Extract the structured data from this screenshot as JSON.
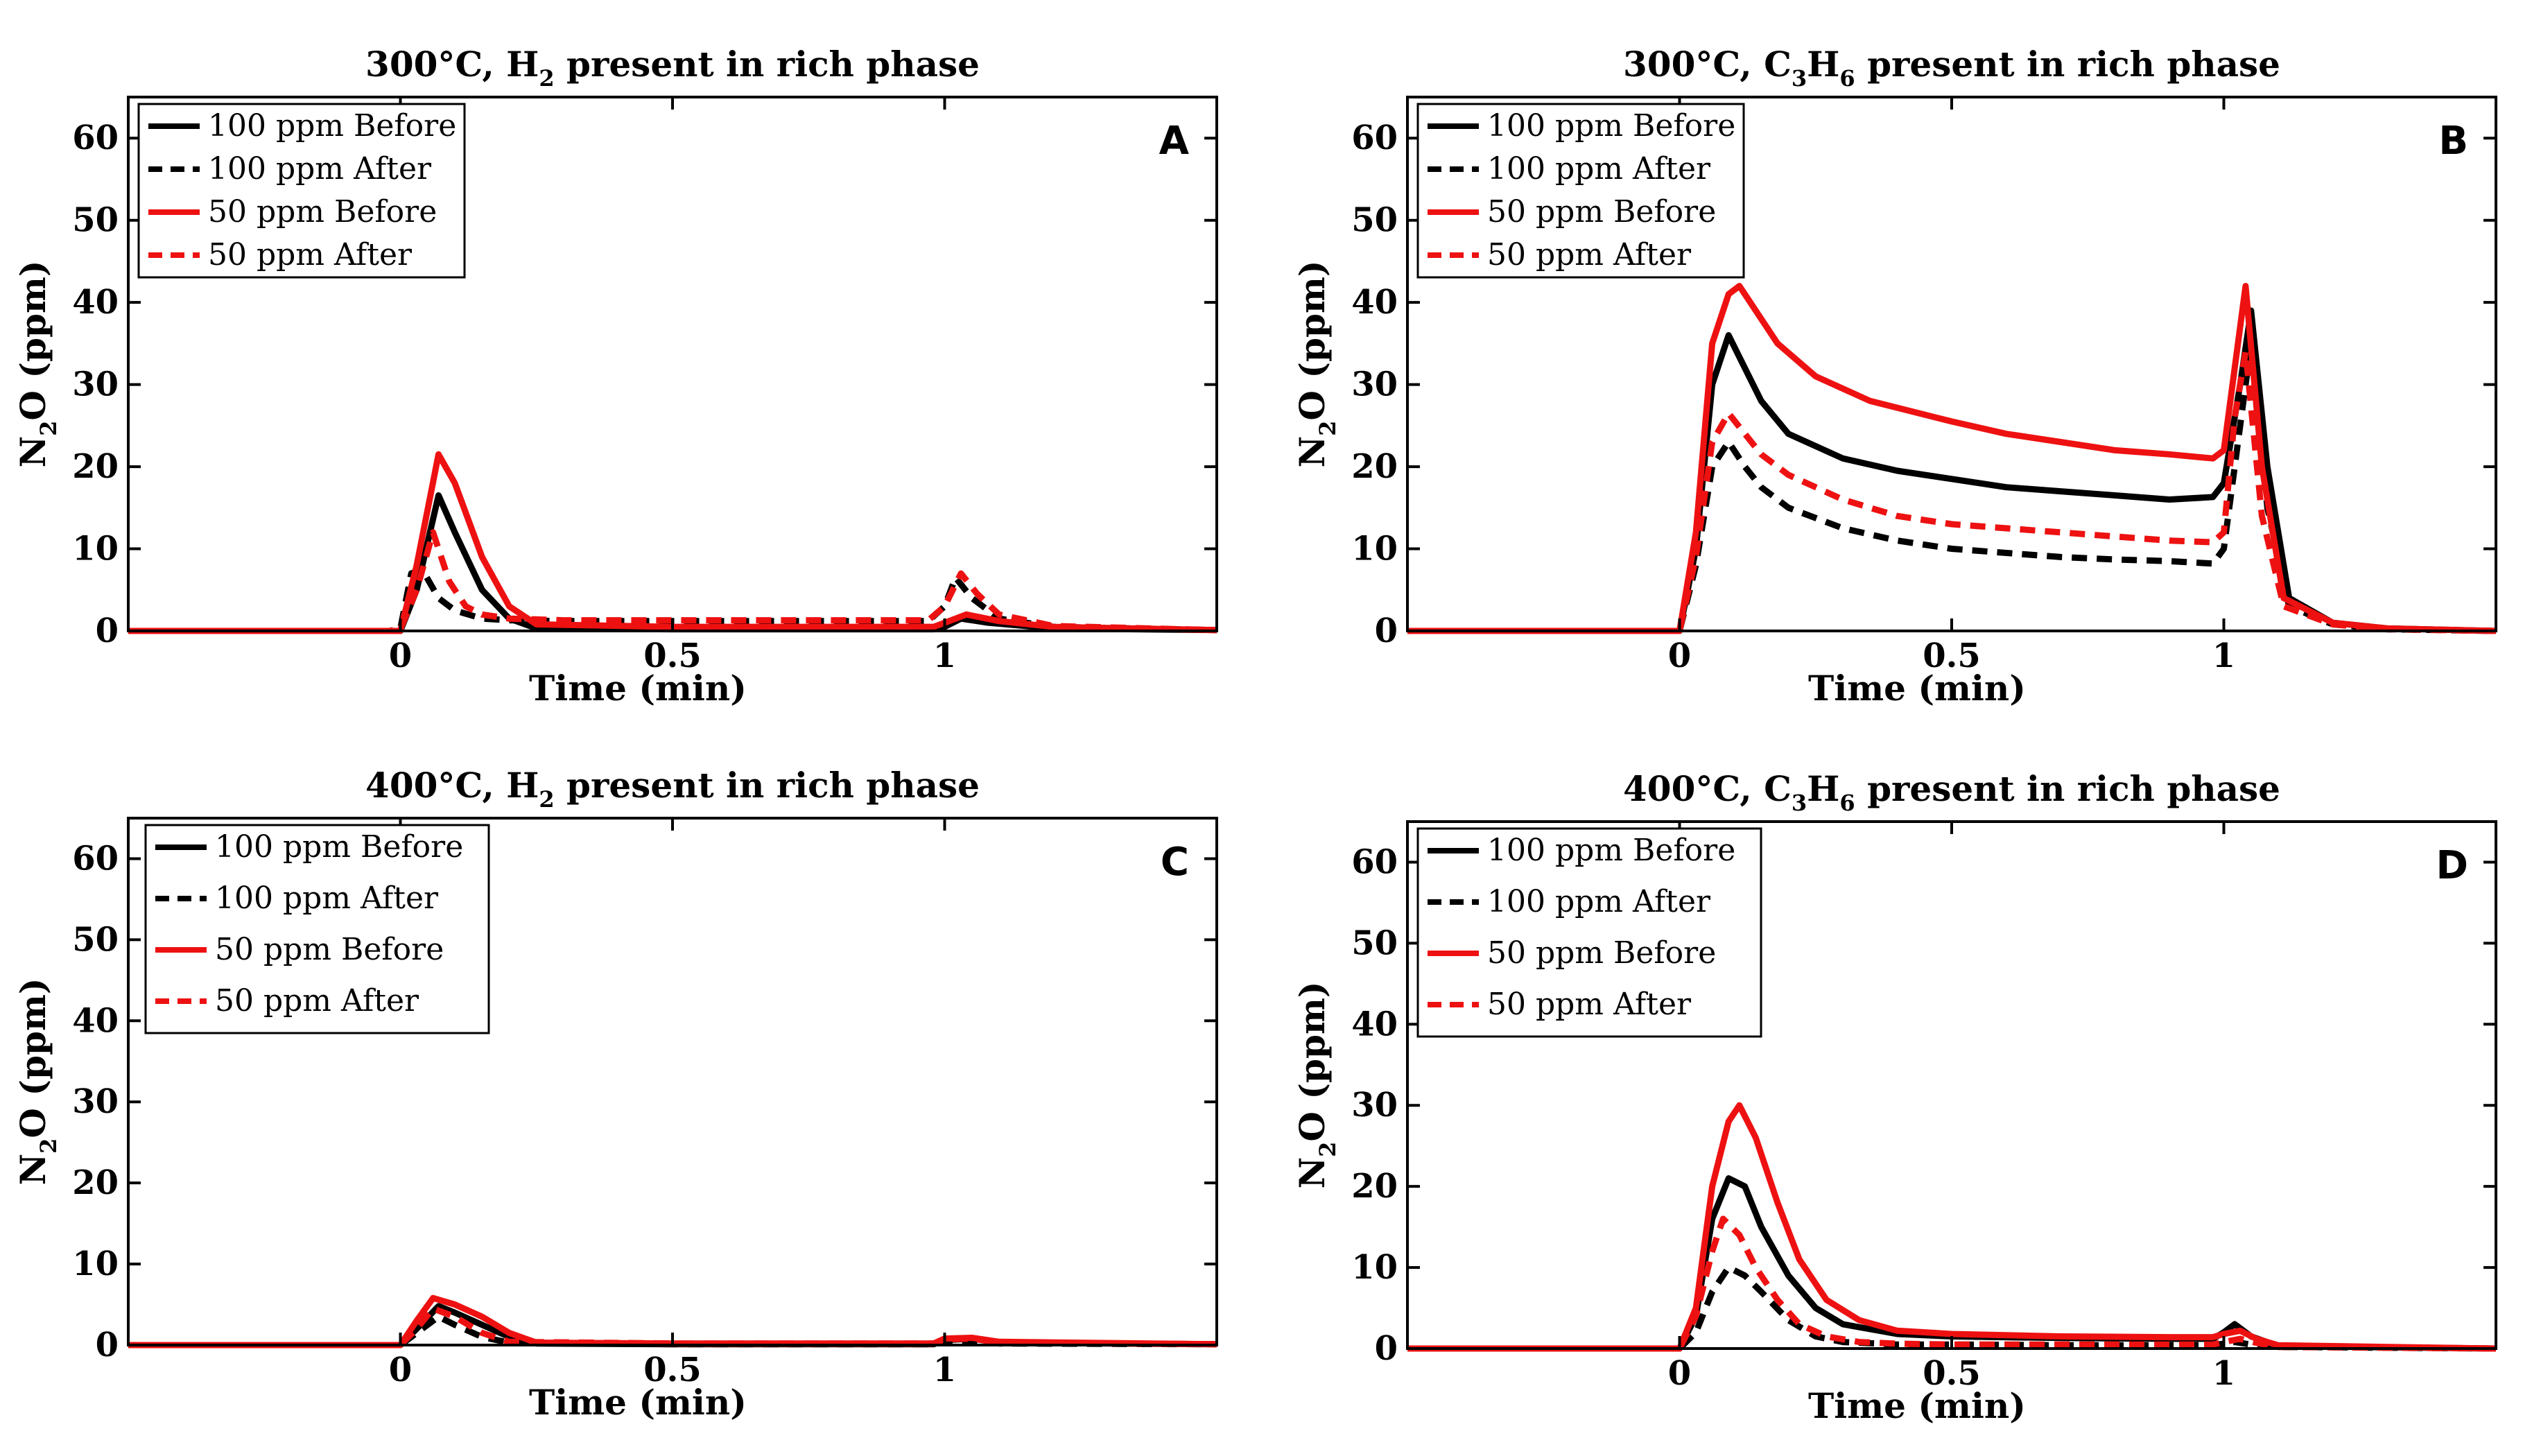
{
  "figure": {
    "y_axis_label_main": "N",
    "y_axis_label_sub": "2",
    "y_axis_label_rest": "O (ppm)",
    "x_axis_label": "Time (min)"
  },
  "colors": {
    "black": "#000000",
    "red": "#ee1111"
  },
  "chart_data": [
    {
      "type": "line",
      "panel": "A",
      "title": {
        "pre": "300°C, H",
        "sub": "2",
        "mid": "",
        "sub2": "",
        "post": " present in rich phase"
      },
      "xlabel": "Time (min)",
      "ylabel": "N2O (ppm)",
      "xlim": [
        -0.5,
        1.5
      ],
      "ylim": [
        0,
        65
      ],
      "xticks": [
        0,
        0.5,
        1
      ],
      "xtick_labels": [
        "0",
        "0.5",
        "1"
      ],
      "yticks": [
        0,
        10,
        20,
        30,
        40,
        50,
        60
      ],
      "ytick_labels": [
        "0",
        "10",
        "20",
        "30",
        "40",
        "50",
        "60"
      ],
      "legend": [
        "100 ppm Before",
        "100 ppm After",
        "50 ppm Before",
        "50 ppm After"
      ],
      "series": [
        {
          "name": "100 ppm Before",
          "color": "black",
          "dash": false,
          "x": [
            -0.5,
            -0.1,
            0,
            0.03,
            0.07,
            0.1,
            0.15,
            0.2,
            0.25,
            0.5,
            0.98,
            1.0,
            1.03,
            1.08,
            1.2,
            1.5
          ],
          "y": [
            0,
            0,
            0,
            5,
            16.5,
            12,
            5,
            1.5,
            0.3,
            0.2,
            0.2,
            0.5,
            1.5,
            1,
            0.3,
            0.1
          ]
        },
        {
          "name": "100 ppm After",
          "color": "black",
          "dash": true,
          "x": [
            -0.5,
            -0.02,
            0,
            0.02,
            0.04,
            0.07,
            0.1,
            0.15,
            0.2,
            0.3,
            0.97,
            1.0,
            1.02,
            1.05,
            1.1,
            1.2,
            1.5
          ],
          "y": [
            0,
            0,
            0.3,
            7,
            7.5,
            4,
            2.5,
            1.5,
            1.3,
            1.2,
            1.2,
            3,
            6.5,
            4,
            1.5,
            0.5,
            0.1
          ]
        },
        {
          "name": "50 ppm Before",
          "color": "red",
          "dash": false,
          "x": [
            -0.5,
            -0.1,
            0,
            0.03,
            0.07,
            0.1,
            0.15,
            0.2,
            0.25,
            0.5,
            0.98,
            1.0,
            1.04,
            1.1,
            1.2,
            1.5
          ],
          "y": [
            0,
            0,
            0,
            8,
            21.5,
            18,
            9,
            3,
            0.8,
            0.5,
            0.5,
            1,
            2,
            1.2,
            0.5,
            0.1
          ]
        },
        {
          "name": "50 ppm After",
          "color": "red",
          "dash": true,
          "x": [
            -0.5,
            -0.02,
            0,
            0.03,
            0.06,
            0.09,
            0.12,
            0.15,
            0.2,
            0.3,
            0.97,
            1.0,
            1.03,
            1.06,
            1.1,
            1.2,
            1.5
          ],
          "y": [
            0,
            0,
            0.2,
            5,
            12,
            6,
            3,
            2,
            1.5,
            1.3,
            1.3,
            3,
            7,
            4.5,
            2,
            0.6,
            0.1
          ]
        }
      ]
    },
    {
      "type": "line",
      "panel": "B",
      "title": {
        "pre": "300°C, C",
        "sub": "3",
        "mid": "H",
        "sub2": "6",
        "post": " present in rich phase"
      },
      "xlabel": "Time (min)",
      "ylabel": "N2O (ppm)",
      "xlim": [
        -0.5,
        1.5
      ],
      "ylim": [
        0,
        65
      ],
      "xticks": [
        0,
        0.5,
        1
      ],
      "xtick_labels": [
        "0",
        "0.5",
        "1"
      ],
      "yticks": [
        0,
        10,
        20,
        30,
        40,
        50,
        60
      ],
      "ytick_labels": [
        "0",
        "10",
        "20",
        "30",
        "40",
        "50",
        "60"
      ],
      "legend": [
        "100 ppm Before",
        "100 ppm After",
        "50 ppm Before",
        "50 ppm After"
      ],
      "series": [
        {
          "name": "100 ppm Before",
          "color": "black",
          "dash": false,
          "x": [
            -0.5,
            0,
            0.03,
            0.06,
            0.09,
            0.12,
            0.15,
            0.2,
            0.3,
            0.4,
            0.5,
            0.6,
            0.7,
            0.8,
            0.9,
            0.98,
            1.0,
            1.03,
            1.05,
            1.08,
            1.12,
            1.2,
            1.3,
            1.5
          ],
          "y": [
            0,
            0,
            10,
            30,
            36,
            32,
            28,
            24,
            21,
            19.5,
            18.5,
            17.5,
            17,
            16.5,
            16,
            16.3,
            18,
            30,
            39,
            20,
            4,
            1,
            0.3,
            0
          ]
        },
        {
          "name": "100 ppm After",
          "color": "black",
          "dash": true,
          "x": [
            -0.5,
            0,
            0.03,
            0.06,
            0.09,
            0.12,
            0.15,
            0.2,
            0.3,
            0.4,
            0.5,
            0.6,
            0.7,
            0.8,
            0.9,
            0.98,
            1.0,
            1.03,
            1.05,
            1.08,
            1.12,
            1.2,
            1.3,
            1.5
          ],
          "y": [
            0,
            0,
            8,
            20,
            23,
            20,
            17.5,
            15,
            12.5,
            11,
            10,
            9.5,
            9,
            8.7,
            8.5,
            8.2,
            10,
            25,
            35,
            15,
            3,
            0.8,
            0.2,
            0
          ]
        },
        {
          "name": "50 ppm Before",
          "color": "red",
          "dash": false,
          "x": [
            -0.5,
            0,
            0.03,
            0.06,
            0.09,
            0.11,
            0.14,
            0.18,
            0.25,
            0.35,
            0.5,
            0.6,
            0.7,
            0.8,
            0.9,
            0.98,
            1.0,
            1.02,
            1.04,
            1.07,
            1.11,
            1.2,
            1.3,
            1.5
          ],
          "y": [
            0,
            0,
            12,
            35,
            41,
            42,
            39,
            35,
            31,
            28,
            25.5,
            24,
            23,
            22,
            21.5,
            21,
            22,
            32,
            42,
            20,
            4,
            1,
            0.3,
            0
          ]
        },
        {
          "name": "50 ppm After",
          "color": "red",
          "dash": true,
          "x": [
            -0.5,
            0,
            0.03,
            0.06,
            0.09,
            0.12,
            0.15,
            0.2,
            0.3,
            0.4,
            0.5,
            0.6,
            0.7,
            0.8,
            0.9,
            0.98,
            1.0,
            1.02,
            1.04,
            1.07,
            1.11,
            1.2,
            1.3,
            1.5
          ],
          "y": [
            0,
            0,
            9,
            23,
            26.5,
            24,
            21.5,
            19,
            16,
            14,
            13,
            12.5,
            12,
            11.5,
            11,
            10.8,
            12,
            26,
            34,
            14,
            3,
            0.8,
            0.2,
            0
          ]
        }
      ]
    },
    {
      "type": "line",
      "panel": "C",
      "title": {
        "pre": "400°C, H",
        "sub": "2",
        "mid": "",
        "sub2": "",
        "post": " present in rich phase"
      },
      "xlabel": "Time (min)",
      "ylabel": "N2O (ppm)",
      "xlim": [
        -0.5,
        1.5
      ],
      "ylim": [
        0,
        65
      ],
      "xticks": [
        0,
        0.5,
        1
      ],
      "xtick_labels": [
        "0",
        "0.5",
        "1"
      ],
      "yticks": [
        0,
        10,
        20,
        30,
        40,
        50,
        60
      ],
      "ytick_labels": [
        "0",
        "10",
        "20",
        "30",
        "40",
        "50",
        "60"
      ],
      "legend": [
        "100 ppm Before",
        "100 ppm After",
        "50 ppm Before",
        "50 ppm After"
      ],
      "series": [
        {
          "name": "100 ppm Before",
          "color": "black",
          "dash": false,
          "x": [
            -0.5,
            0,
            0.03,
            0.07,
            0.1,
            0.15,
            0.2,
            0.25,
            0.5,
            0.98,
            1.0,
            1.05,
            1.1,
            1.5
          ],
          "y": [
            0,
            0,
            2,
            4.8,
            4,
            2.5,
            1,
            0.2,
            0.1,
            0.1,
            0.6,
            0.8,
            0.3,
            0.1
          ]
        },
        {
          "name": "100 ppm After",
          "color": "black",
          "dash": true,
          "x": [
            -0.5,
            0,
            0.03,
            0.07,
            0.1,
            0.15,
            0.2,
            0.5,
            0.98,
            1.0,
            1.05,
            1.1,
            1.5
          ],
          "y": [
            0,
            0,
            1.5,
            3.5,
            2.5,
            1,
            0.3,
            0.1,
            0.1,
            0.4,
            0.5,
            0.2,
            0.1
          ]
        },
        {
          "name": "50 ppm Before",
          "color": "red",
          "dash": false,
          "x": [
            -0.5,
            0,
            0.03,
            0.06,
            0.1,
            0.15,
            0.2,
            0.25,
            0.5,
            0.98,
            1.0,
            1.05,
            1.1,
            1.5
          ],
          "y": [
            0,
            0,
            3,
            5.8,
            5,
            3.5,
            1.5,
            0.3,
            0.2,
            0.2,
            0.8,
            0.9,
            0.4,
            0.1
          ]
        },
        {
          "name": "50 ppm After",
          "color": "red",
          "dash": true,
          "x": [
            -0.5,
            0,
            0.03,
            0.06,
            0.1,
            0.15,
            0.2,
            0.5,
            0.98,
            1.0,
            1.05,
            1.1,
            1.5
          ],
          "y": [
            0,
            0,
            2,
            4.5,
            3.5,
            1.5,
            0.4,
            0.2,
            0.2,
            0.7,
            0.8,
            0.3,
            0.1
          ]
        }
      ]
    },
    {
      "type": "line",
      "panel": "D",
      "title": {
        "pre": "400°C, C",
        "sub": "3",
        "mid": "H",
        "sub2": "6",
        "post": " present in rich phase"
      },
      "xlabel": "Time (min)",
      "ylabel": "N2O (ppm)",
      "xlim": [
        -0.5,
        1.5
      ],
      "ylim": [
        0,
        65
      ],
      "xticks": [
        0,
        0.5,
        1
      ],
      "xtick_labels": [
        "0",
        "0.5",
        "1"
      ],
      "yticks": [
        0,
        10,
        20,
        30,
        40,
        50,
        60
      ],
      "ytick_labels": [
        "0",
        "10",
        "20",
        "30",
        "40",
        "50",
        "60"
      ],
      "legend": [
        "100 ppm Before",
        "100 ppm After",
        "50 ppm Before",
        "50 ppm After"
      ],
      "series": [
        {
          "name": "100 ppm Before",
          "color": "black",
          "dash": false,
          "x": [
            -0.5,
            0,
            0.03,
            0.06,
            0.09,
            0.12,
            0.15,
            0.2,
            0.25,
            0.3,
            0.4,
            0.5,
            0.7,
            0.9,
            0.98,
            1.0,
            1.02,
            1.05,
            1.1,
            1.5
          ],
          "y": [
            0,
            0,
            4,
            16,
            21,
            20,
            15,
            9,
            5,
            3,
            1.8,
            1.5,
            1.3,
            1.2,
            1.2,
            2,
            3,
            1.5,
            0.3,
            0
          ]
        },
        {
          "name": "100 ppm After",
          "color": "black",
          "dash": true,
          "x": [
            -0.5,
            0,
            0.03,
            0.06,
            0.09,
            0.12,
            0.15,
            0.2,
            0.25,
            0.3,
            0.4,
            0.5,
            0.7,
            0.9,
            0.98,
            1.0,
            1.02,
            1.05,
            1.1,
            1.5
          ],
          "y": [
            0,
            0,
            2,
            7,
            10,
            9,
            7,
            3.5,
            1.5,
            0.8,
            0.5,
            0.5,
            0.4,
            0.4,
            0.4,
            0.6,
            0.8,
            0.5,
            0.2,
            0
          ]
        },
        {
          "name": "50 ppm Before",
          "color": "red",
          "dash": false,
          "x": [
            -0.5,
            0,
            0.03,
            0.06,
            0.09,
            0.11,
            0.14,
            0.18,
            0.22,
            0.27,
            0.33,
            0.4,
            0.5,
            0.7,
            0.9,
            0.98,
            1.0,
            1.03,
            1.06,
            1.1,
            1.5
          ],
          "y": [
            0,
            0,
            5,
            20,
            28,
            30,
            26,
            18,
            11,
            6,
            3.5,
            2.2,
            1.8,
            1.5,
            1.4,
            1.4,
            1.8,
            2.2,
            1.2,
            0.4,
            0
          ]
        },
        {
          "name": "50 ppm After",
          "color": "red",
          "dash": true,
          "x": [
            -0.5,
            0,
            0.03,
            0.06,
            0.08,
            0.11,
            0.14,
            0.18,
            0.22,
            0.27,
            0.33,
            0.4,
            0.5,
            0.7,
            0.9,
            0.98,
            1.0,
            1.03,
            1.06,
            1.1,
            1.5
          ],
          "y": [
            0,
            0,
            4,
            12,
            16,
            14,
            10,
            6,
            3,
            1.5,
            0.8,
            0.6,
            0.5,
            0.5,
            0.5,
            0.5,
            0.8,
            1.2,
            0.7,
            0.2,
            0
          ]
        }
      ]
    }
  ]
}
